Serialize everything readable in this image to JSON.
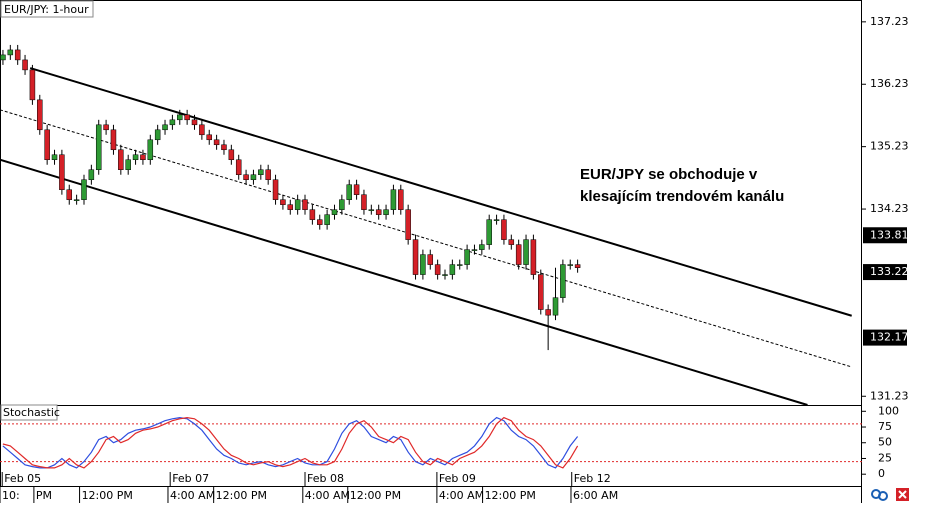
{
  "chart_data": [
    {
      "type": "candlestick",
      "title": "EUR/JPY: 1-hour",
      "open": [
        136.62,
        136.7,
        136.78,
        136.62,
        136.46,
        135.98,
        135.5,
        135.02,
        135.1,
        134.54,
        134.38,
        134.38,
        134.7,
        134.86,
        135.58,
        135.5,
        135.18,
        134.86,
        135.02,
        135.1,
        135.02,
        135.34,
        135.5,
        135.58,
        135.66,
        135.74,
        135.66,
        135.58,
        135.42,
        135.34,
        135.26,
        135.18,
        135.02,
        134.78,
        134.7,
        134.78,
        134.86,
        134.7,
        134.38,
        134.3,
        134.22,
        134.38,
        134.22,
        134.06,
        133.98,
        134.14,
        134.22,
        134.38,
        134.62,
        134.46,
        134.22,
        134.22,
        134.14,
        134.22,
        134.54,
        134.22,
        133.74,
        133.18,
        133.5,
        133.34,
        133.18,
        133.18,
        133.34,
        133.34,
        133.58,
        133.58,
        133.66,
        134.06,
        134.06,
        133.74,
        133.66,
        133.34,
        133.74,
        133.18,
        132.62,
        132.53,
        132.81,
        133.34,
        133.34
      ],
      "high": [
        136.78,
        136.86,
        136.86,
        136.7,
        136.54,
        136.06,
        135.58,
        135.18,
        135.18,
        134.62,
        134.46,
        134.78,
        134.94,
        135.66,
        135.66,
        135.58,
        135.26,
        135.1,
        135.18,
        135.18,
        135.42,
        135.58,
        135.66,
        135.74,
        135.82,
        135.82,
        135.74,
        135.66,
        135.5,
        135.42,
        135.34,
        135.26,
        135.1,
        134.86,
        134.86,
        134.94,
        134.94,
        134.78,
        134.46,
        134.38,
        134.46,
        134.46,
        134.3,
        134.14,
        134.22,
        134.3,
        134.46,
        134.7,
        134.7,
        134.54,
        134.3,
        134.3,
        134.3,
        134.62,
        134.62,
        134.3,
        133.82,
        133.58,
        133.58,
        133.42,
        133.26,
        133.42,
        133.42,
        133.66,
        133.66,
        133.74,
        134.14,
        134.14,
        134.14,
        133.82,
        133.74,
        133.82,
        133.82,
        133.26,
        132.7,
        133.29,
        133.42,
        133.42,
        133.42
      ],
      "low": [
        136.54,
        136.62,
        136.54,
        136.38,
        135.9,
        135.42,
        134.94,
        134.94,
        134.46,
        134.3,
        134.3,
        134.3,
        134.62,
        134.78,
        135.42,
        135.1,
        134.78,
        134.78,
        134.94,
        134.94,
        134.94,
        135.26,
        135.42,
        135.5,
        135.58,
        135.58,
        135.5,
        135.34,
        135.26,
        135.18,
        135.1,
        134.94,
        134.7,
        134.62,
        134.62,
        134.7,
        134.62,
        134.3,
        134.22,
        134.14,
        134.14,
        134.14,
        133.98,
        133.9,
        133.9,
        134.06,
        134.14,
        134.3,
        134.38,
        134.14,
        134.14,
        134.06,
        134.06,
        134.14,
        134.14,
        133.66,
        133.1,
        133.1,
        133.26,
        133.1,
        133.1,
        133.1,
        133.26,
        133.26,
        133.5,
        133.5,
        133.58,
        133.98,
        133.66,
        133.58,
        133.26,
        133.26,
        133.1,
        132.54,
        131.97,
        132.45,
        132.73,
        133.26,
        133.21
      ],
      "close": [
        136.7,
        136.78,
        136.62,
        136.46,
        135.98,
        135.5,
        135.02,
        135.1,
        134.54,
        134.38,
        134.38,
        134.7,
        134.86,
        135.58,
        135.5,
        135.18,
        134.86,
        135.02,
        135.1,
        135.02,
        135.34,
        135.5,
        135.58,
        135.66,
        135.74,
        135.66,
        135.58,
        135.42,
        135.34,
        135.26,
        135.18,
        135.02,
        134.78,
        134.7,
        134.78,
        134.86,
        134.7,
        134.38,
        134.3,
        134.22,
        134.38,
        134.22,
        134.06,
        133.98,
        134.14,
        134.22,
        134.38,
        134.62,
        134.46,
        134.22,
        134.22,
        134.14,
        134.22,
        134.54,
        134.22,
        133.74,
        133.18,
        133.5,
        133.34,
        133.18,
        133.18,
        133.34,
        133.34,
        133.58,
        133.58,
        133.66,
        134.06,
        134.06,
        133.74,
        133.66,
        133.34,
        133.74,
        133.18,
        132.62,
        132.53,
        132.81,
        133.34,
        133.34,
        133.29
      ],
      "up_color": "#2e9a34",
      "down_color": "#d42027",
      "xlim": [
        -0.4,
        116.6
      ],
      "ylim": [
        131.09,
        137.58
      ],
      "yticks": [
        137.23,
        136.23,
        135.23,
        134.23,
        131.23
      ],
      "price_tags": [
        133.81,
        133.22,
        132.17
      ],
      "channel": [
        {
          "x": [
            3.7,
            115.2
          ],
          "y": [
            136.49,
            132.52
          ],
          "style": "solid"
        },
        {
          "x": [
            -0.4,
            115.2
          ],
          "y": [
            135.82,
            131.7
          ],
          "style": "dotted"
        },
        {
          "x": [
            -0.4,
            109.2
          ],
          "y": [
            135.02,
            131.09
          ],
          "style": "solid"
        }
      ],
      "annotation": [
        "EUR/JPY se obchoduje v",
        "klesajícím trendovém kanálu"
      ],
      "date_ticks": [
        {
          "value": -0.1,
          "label": "Feb 05"
        },
        {
          "value": 22.7,
          "label": "Feb 07"
        },
        {
          "value": 41,
          "label": "Feb 08"
        },
        {
          "value": 58.9,
          "label": "Feb 09"
        },
        {
          "value": 77.2,
          "label": "Feb 12"
        }
      ],
      "time_ticks": [
        {
          "value": -0.4,
          "label": "10:"
        },
        {
          "value": 4.2,
          "label": "PM"
        },
        {
          "value": 10.4,
          "label": "12:00 PM"
        },
        {
          "value": 22.4,
          "label": "4:00 AM"
        },
        {
          "value": 28.6,
          "label": "12:00 PM"
        },
        {
          "value": 40.7,
          "label": "4:00 AM"
        },
        {
          "value": 46.8,
          "label": "12:00 PM"
        },
        {
          "value": 58.9,
          "label": "4:00 AM"
        },
        {
          "value": 65.1,
          "label": "12:00 PM"
        },
        {
          "value": 77.1,
          "label": "6:00 AM"
        }
      ]
    },
    {
      "type": "line",
      "title": "Stochastic",
      "series": [
        {
          "color": "#2f4fe0",
          "values": [
            45,
            35,
            25,
            15,
            12,
            10,
            10,
            15,
            25,
            15,
            10,
            20,
            35,
            55,
            60,
            50,
            55,
            65,
            70,
            72,
            75,
            80,
            85,
            88,
            90,
            88,
            80,
            70,
            55,
            40,
            30,
            25,
            18,
            15,
            18,
            20,
            15,
            12,
            15,
            20,
            25,
            18,
            15,
            15,
            20,
            40,
            65,
            80,
            85,
            75,
            60,
            55,
            50,
            60,
            55,
            35,
            20,
            15,
            25,
            20,
            15,
            25,
            30,
            35,
            45,
            60,
            80,
            90,
            85,
            70,
            60,
            55,
            45,
            30,
            15,
            10,
            25,
            45,
            60
          ]
        },
        {
          "color": "#e02a2a",
          "values": [
            48,
            45,
            35,
            25,
            15,
            12,
            10,
            10,
            15,
            25,
            15,
            10,
            20,
            35,
            55,
            60,
            50,
            55,
            65,
            70,
            72,
            75,
            80,
            85,
            88,
            90,
            88,
            80,
            70,
            55,
            40,
            30,
            25,
            18,
            15,
            18,
            20,
            15,
            12,
            15,
            20,
            25,
            18,
            15,
            15,
            20,
            40,
            65,
            80,
            85,
            75,
            60,
            55,
            50,
            60,
            55,
            35,
            20,
            15,
            25,
            20,
            15,
            25,
            30,
            35,
            45,
            60,
            80,
            90,
            85,
            70,
            60,
            55,
            45,
            30,
            15,
            10,
            25,
            45
          ]
        }
      ],
      "ylim": [
        -14,
        110
      ],
      "yticks": [
        100,
        75,
        50,
        25,
        0
      ],
      "levels": [
        80,
        20
      ],
      "level_color": "#e02a2a"
    }
  ]
}
